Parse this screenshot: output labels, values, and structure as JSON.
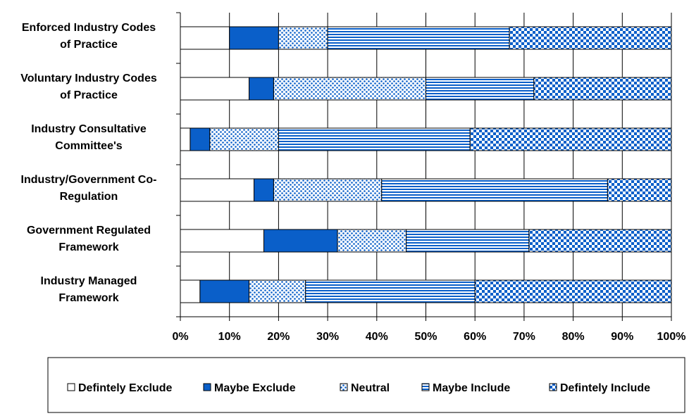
{
  "chart_data": {
    "type": "bar",
    "orientation": "horizontal",
    "stacked": "percent",
    "categories": [
      [
        "Enforced Industry Codes",
        "of Practice"
      ],
      [
        "Voluntary Industry Codes",
        "of Practice"
      ],
      [
        "Industry Consultative",
        "Committee's"
      ],
      [
        "Industry/Government Co-",
        "Regulation"
      ],
      [
        "Government Regulated",
        "Framework"
      ],
      [
        "Industry Managed",
        "Framework"
      ]
    ],
    "series": [
      {
        "name": "Defintely Exclude",
        "values": [
          10,
          14,
          2,
          15,
          17,
          4
        ],
        "pattern": "white"
      },
      {
        "name": "Maybe Exclude",
        "values": [
          10,
          5,
          4,
          4,
          15,
          10
        ],
        "pattern": "solid"
      },
      {
        "name": "Neutral",
        "values": [
          10,
          31,
          14,
          22,
          14,
          11.5
        ],
        "pattern": "dots"
      },
      {
        "name": "Maybe Include",
        "values": [
          37,
          22,
          39,
          46,
          25,
          34.5
        ],
        "pattern": "hstripes"
      },
      {
        "name": "Defintely Include",
        "values": [
          33,
          28,
          41,
          13,
          29,
          40
        ],
        "pattern": "checker"
      }
    ],
    "xlim": [
      0,
      100
    ],
    "x_ticks": [
      "0%",
      "10%",
      "20%",
      "30%",
      "40%",
      "50%",
      "60%",
      "70%",
      "80%",
      "90%",
      "100%"
    ],
    "title": "",
    "xlabel": "",
    "ylabel": "",
    "grid": "vertical",
    "legend_position": "bottom",
    "colors": {
      "blue": "#0a5fc9",
      "border": "#000000",
      "white": "#ffffff"
    }
  }
}
